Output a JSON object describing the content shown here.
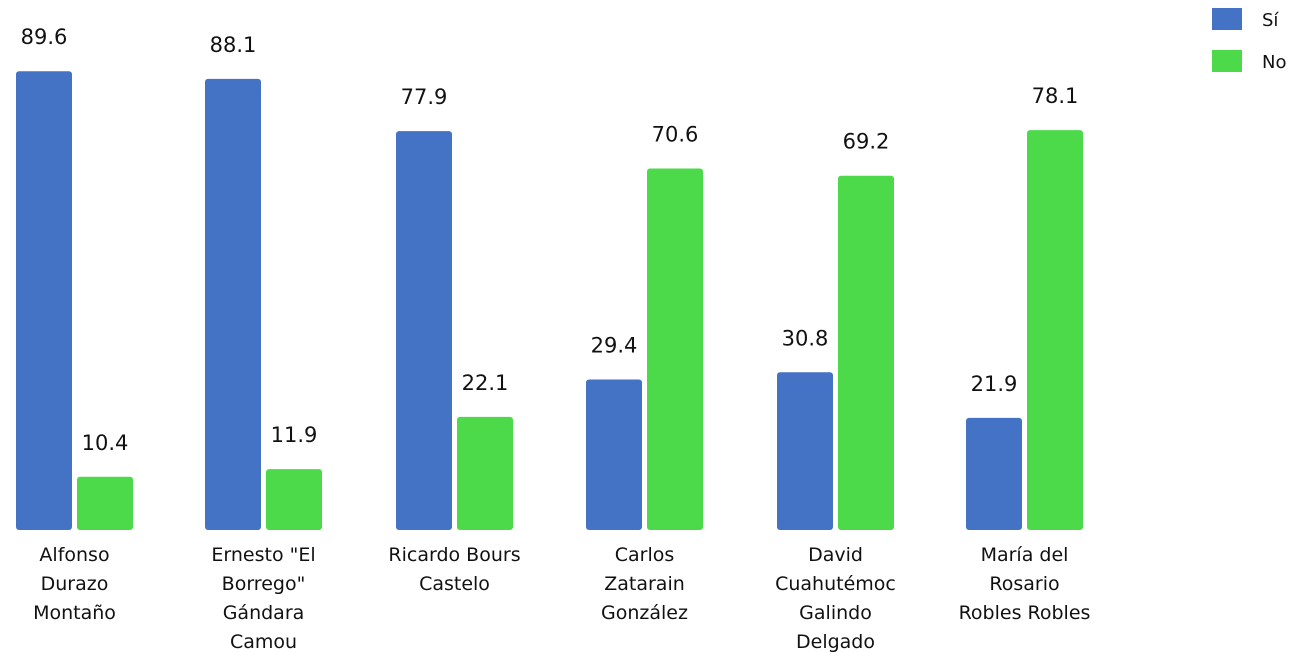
{
  "chart_data": {
    "type": "bar",
    "title": "",
    "xlabel": "",
    "ylabel": "",
    "ylim": [
      0,
      100
    ],
    "grid": false,
    "legend_position": "top-right",
    "categories": [
      [
        "Alfonso",
        "Durazo",
        "Montaño"
      ],
      [
        "Ernesto \"El",
        "Borrego\"",
        "Gándara",
        "Camou"
      ],
      [
        "Ricardo Bours",
        "Castelo"
      ],
      [
        "Carlos",
        "Zatarain",
        "González"
      ],
      [
        "David",
        "Cuahutémoc",
        "Galindo",
        "Delgado"
      ],
      [
        "María del",
        "Rosario",
        "Robles Robles"
      ]
    ],
    "series": [
      {
        "name": "Sí",
        "color": "#4472C4",
        "values": [
          89.6,
          88.1,
          77.9,
          29.4,
          30.8,
          21.9
        ]
      },
      {
        "name": "No",
        "color": "#4CD94A",
        "values": [
          10.4,
          11.9,
          22.1,
          70.6,
          69.2,
          78.1
        ]
      }
    ]
  }
}
